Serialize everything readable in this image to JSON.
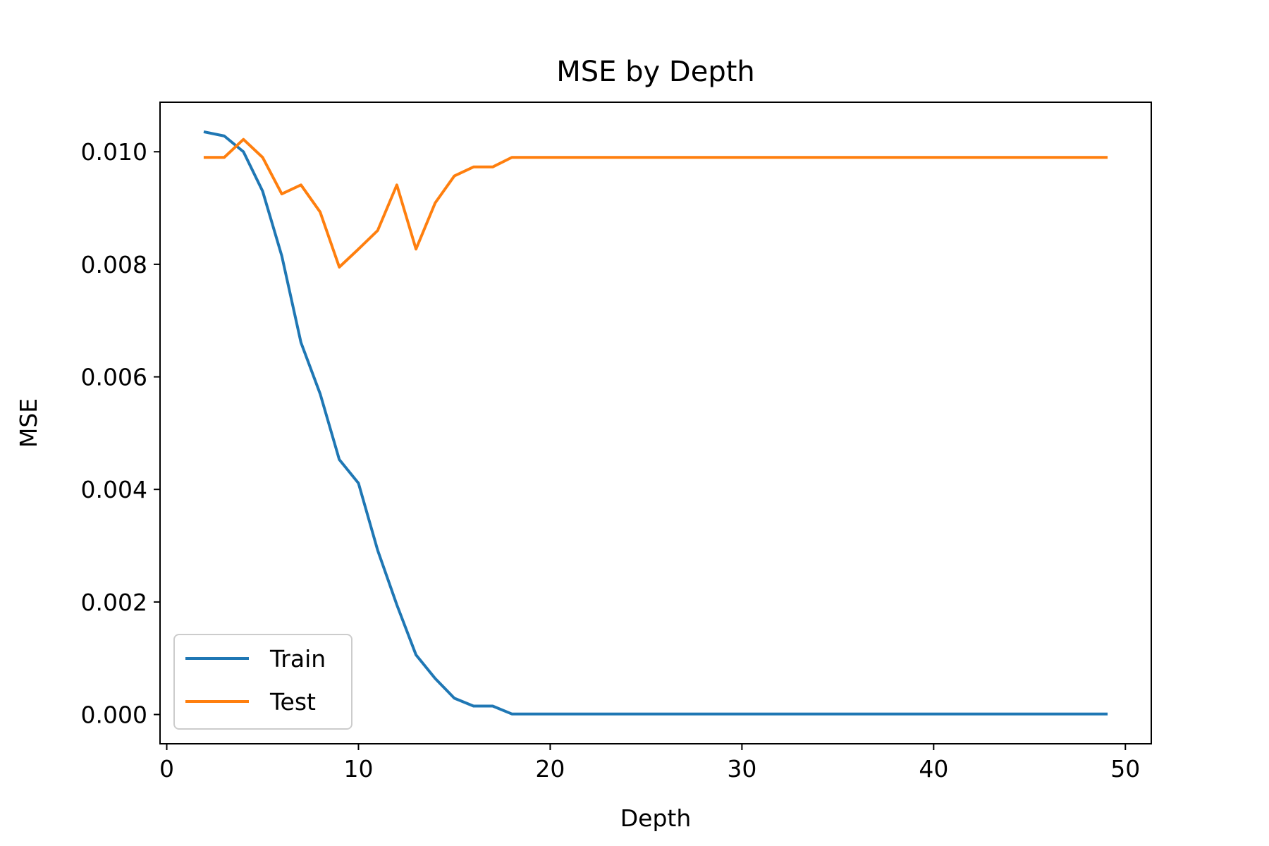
{
  "chart_data": {
    "type": "line",
    "title": "MSE by Depth",
    "xlabel": "Depth",
    "ylabel": "MSE",
    "xlim": [
      -0.35,
      51.35
    ],
    "ylim": [
      -0.00052,
      0.01088
    ],
    "xticks": [
      0,
      10,
      20,
      30,
      40,
      50
    ],
    "xtick_labels": [
      "0",
      "10",
      "20",
      "30",
      "40",
      "50"
    ],
    "yticks": [
      0.0,
      0.002,
      0.004,
      0.006,
      0.008,
      0.01
    ],
    "ytick_labels": [
      "0.000",
      "0.002",
      "0.004",
      "0.006",
      "0.008",
      "0.010"
    ],
    "grid": false,
    "legend_position": "lower-left",
    "x": [
      2,
      3,
      4,
      5,
      6,
      7,
      8,
      9,
      10,
      11,
      12,
      13,
      14,
      15,
      16,
      17,
      18,
      19,
      20,
      21,
      22,
      23,
      24,
      25,
      26,
      27,
      28,
      29,
      30,
      31,
      32,
      33,
      34,
      35,
      36,
      37,
      38,
      39,
      40,
      41,
      42,
      43,
      44,
      45,
      46,
      47,
      48,
      49
    ],
    "series": [
      {
        "name": "Train",
        "color": "#1f77b4",
        "values": [
          0.01035,
          0.01028,
          0.01,
          0.0093,
          0.00815,
          0.00661,
          0.0057,
          0.00453,
          0.00411,
          0.00292,
          0.00195,
          0.00106,
          0.00064,
          0.00029,
          0.00015,
          0.00015,
          1e-05,
          1e-05,
          1e-05,
          1e-05,
          1e-05,
          1e-05,
          1e-05,
          1e-05,
          1e-05,
          1e-05,
          1e-05,
          1e-05,
          1e-05,
          1e-05,
          1e-05,
          1e-05,
          1e-05,
          1e-05,
          1e-05,
          1e-05,
          1e-05,
          1e-05,
          1e-05,
          1e-05,
          1e-05,
          1e-05,
          1e-05,
          1e-05,
          1e-05,
          1e-05,
          1e-05,
          1e-05
        ]
      },
      {
        "name": "Test",
        "color": "#ff7f0e",
        "values": [
          0.0099,
          0.0099,
          0.01022,
          0.0099,
          0.00925,
          0.00941,
          0.00893,
          0.00795,
          0.00827,
          0.0086,
          0.00941,
          0.00827,
          0.00909,
          0.00957,
          0.00973,
          0.00973,
          0.0099,
          0.0099,
          0.0099,
          0.0099,
          0.0099,
          0.0099,
          0.0099,
          0.0099,
          0.0099,
          0.0099,
          0.0099,
          0.0099,
          0.0099,
          0.0099,
          0.0099,
          0.0099,
          0.0099,
          0.0099,
          0.0099,
          0.0099,
          0.0099,
          0.0099,
          0.0099,
          0.0099,
          0.0099,
          0.0099,
          0.0099,
          0.0099,
          0.0099,
          0.0099,
          0.0099,
          0.0099
        ]
      }
    ]
  }
}
